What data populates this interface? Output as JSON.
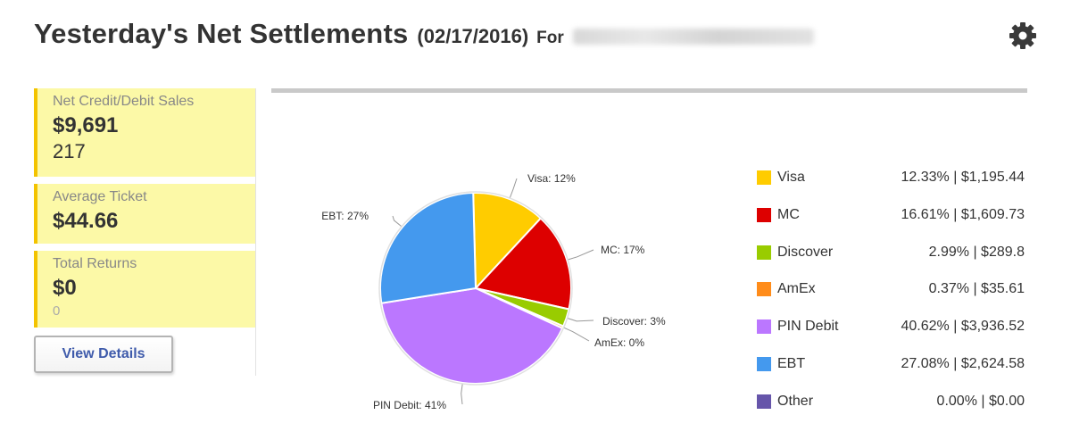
{
  "header": {
    "title": "Yesterday's Net Settlements",
    "date": "(02/17/2016)",
    "for_label": "For"
  },
  "settings_icon": "gear-icon",
  "cards": [
    {
      "label": "Net Credit/Debit Sales",
      "value": "$9,691",
      "count": "217"
    },
    {
      "label": "Average Ticket",
      "value": "$44.66"
    },
    {
      "label": "Total Returns",
      "value": "$0",
      "count": "0"
    }
  ],
  "view_details_label": "View Details",
  "chart_data": {
    "type": "pie",
    "slices": [
      {
        "name": "Visa",
        "percent": 12.33,
        "label": "Visa: 12%",
        "color": "#ffcc00"
      },
      {
        "name": "MC",
        "percent": 16.61,
        "label": "MC: 17%",
        "color": "#dd0000"
      },
      {
        "name": "Discover",
        "percent": 2.99,
        "label": "Discover: 3%",
        "color": "#99cc00"
      },
      {
        "name": "AmEx",
        "percent": 0.37,
        "label": "AmEx: 0%",
        "color": "#ff8c1a"
      },
      {
        "name": "PIN Debit",
        "percent": 40.62,
        "label": "PIN Debit: 41%",
        "color": "#bb77ff"
      },
      {
        "name": "EBT",
        "percent": 27.08,
        "label": "EBT: 27%",
        "color": "#4499ee"
      }
    ]
  },
  "legend": [
    {
      "name": "Visa",
      "value": "12.33% | $1,195.44",
      "color": "#ffcc00"
    },
    {
      "name": "MC",
      "value": "16.61% | $1,609.73",
      "color": "#dd0000"
    },
    {
      "name": "Discover",
      "value": "2.99% | $289.8",
      "color": "#99cc00"
    },
    {
      "name": "AmEx",
      "value": "0.37% | $35.61",
      "color": "#ff8c1a"
    },
    {
      "name": "PIN Debit",
      "value": "40.62% | $3,936.52",
      "color": "#bb77ff"
    },
    {
      "name": "EBT",
      "value": "27.08% | $2,624.58",
      "color": "#4499ee"
    },
    {
      "name": "Other",
      "value": "0.00% | $0.00",
      "color": "#6655aa"
    }
  ]
}
